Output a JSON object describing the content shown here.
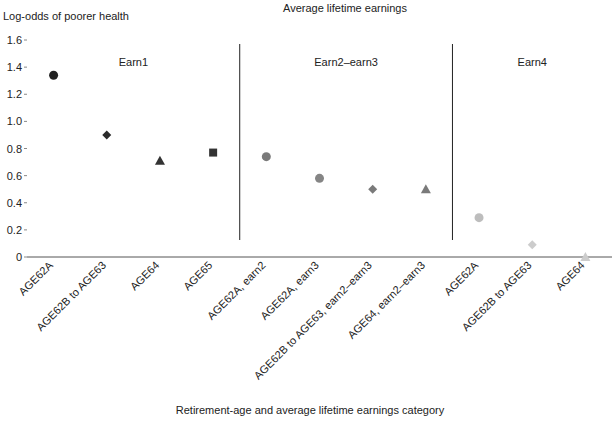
{
  "chart_data": {
    "type": "scatter",
    "title": "Average lifetime earnings",
    "y_label": "Log-odds of poorer health",
    "x_label": "Retirement-age and average lifetime earnings category",
    "categories": [
      "AGE62A",
      "AGE62B to AGE63",
      "AGE64",
      "AGE65",
      "AGE62A, earn2",
      "AGE62A, earn3",
      "AGE62B to AGE63, earn2–earn3",
      "AGE64, earn2–earn3",
      "AGE62A",
      "AGE62B to AGE63",
      "AGE64"
    ],
    "series": [
      {
        "color": "#222222",
        "marker": "circle",
        "values": [
          1.34,
          null,
          null,
          null,
          null,
          null,
          null,
          null,
          null,
          null,
          null
        ]
      },
      {
        "color": "#2b2b2b",
        "marker": "diamond",
        "values": [
          null,
          0.9,
          null,
          null,
          null,
          null,
          null,
          null,
          null,
          null,
          null
        ]
      },
      {
        "color": "#333333",
        "marker": "triangle",
        "values": [
          null,
          null,
          0.71,
          null,
          null,
          null,
          null,
          null,
          null,
          null,
          null
        ]
      },
      {
        "color": "#333333",
        "marker": "square",
        "values": [
          null,
          null,
          null,
          0.77,
          null,
          null,
          null,
          null,
          null,
          null,
          null
        ]
      },
      {
        "color": "#7a7a7a",
        "marker": "circle",
        "values": [
          null,
          null,
          null,
          null,
          0.74,
          null,
          null,
          null,
          null,
          null,
          null
        ]
      },
      {
        "color": "#858585",
        "marker": "circle",
        "values": [
          null,
          null,
          null,
          null,
          null,
          0.58,
          null,
          null,
          null,
          null,
          null
        ]
      },
      {
        "color": "#7a7a7a",
        "marker": "diamond",
        "values": [
          null,
          null,
          null,
          null,
          null,
          null,
          0.5,
          null,
          null,
          null,
          null
        ]
      },
      {
        "color": "#7a7a7a",
        "marker": "triangle",
        "values": [
          null,
          null,
          null,
          null,
          null,
          null,
          null,
          0.5,
          null,
          null,
          null
        ]
      },
      {
        "color": "#bdbdbd",
        "marker": "circle",
        "values": [
          null,
          null,
          null,
          null,
          null,
          null,
          null,
          null,
          0.29,
          null,
          null
        ]
      },
      {
        "color": "#cccccc",
        "marker": "diamond",
        "values": [
          null,
          null,
          null,
          null,
          null,
          null,
          null,
          null,
          null,
          0.09,
          null
        ]
      },
      {
        "color": "#cccccc",
        "marker": "triangle",
        "values": [
          null,
          null,
          null,
          null,
          null,
          null,
          null,
          null,
          null,
          null,
          0
        ]
      }
    ],
    "annotations": [
      {
        "text": "Earn1",
        "span": 4
      },
      {
        "text": "Earn2–earn3",
        "span": 4
      },
      {
        "text": "Earn4",
        "span": 3
      }
    ],
    "ylim": [
      0,
      1.6
    ],
    "yticks": [
      0,
      0.2,
      0.4,
      0.6,
      0.8,
      {
        "value": 1,
        "label": "1.0"
      },
      1.2,
      1.4,
      1.6
    ],
    "grid": false
  }
}
